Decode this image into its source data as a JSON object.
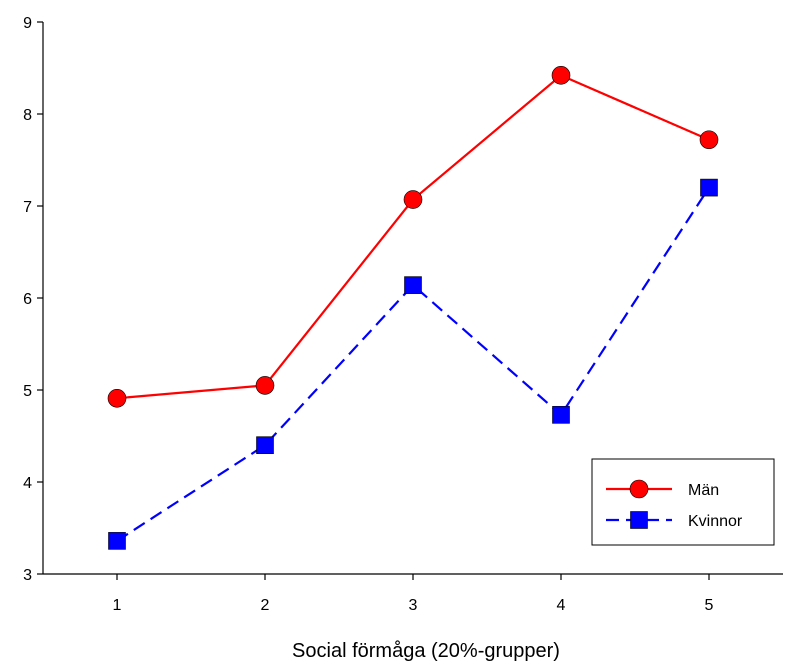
{
  "chart_data": {
    "type": "line",
    "title": "",
    "xlabel": "Social förmåga (20%-grupper)",
    "ylabel": "",
    "x": [
      1,
      2,
      3,
      4,
      5
    ],
    "xlim": [
      0.5,
      5.5
    ],
    "ylim": [
      3,
      9
    ],
    "xticks": [
      "1",
      "2",
      "3",
      "4",
      "5"
    ],
    "yticks": [
      "3",
      "4",
      "5",
      "6",
      "7",
      "8",
      "9"
    ],
    "grid": false,
    "legend_position": "bottom-right",
    "series": [
      {
        "name": "Män",
        "values": [
          4.91,
          5.05,
          7.07,
          8.42,
          7.72
        ],
        "color": "#ff0000",
        "marker": "circle",
        "line_style": "solid"
      },
      {
        "name": "Kvinnor",
        "values": [
          3.36,
          4.4,
          6.14,
          4.73,
          7.2
        ],
        "color": "#0000ff",
        "marker": "square",
        "line_style": "dashed"
      }
    ]
  }
}
